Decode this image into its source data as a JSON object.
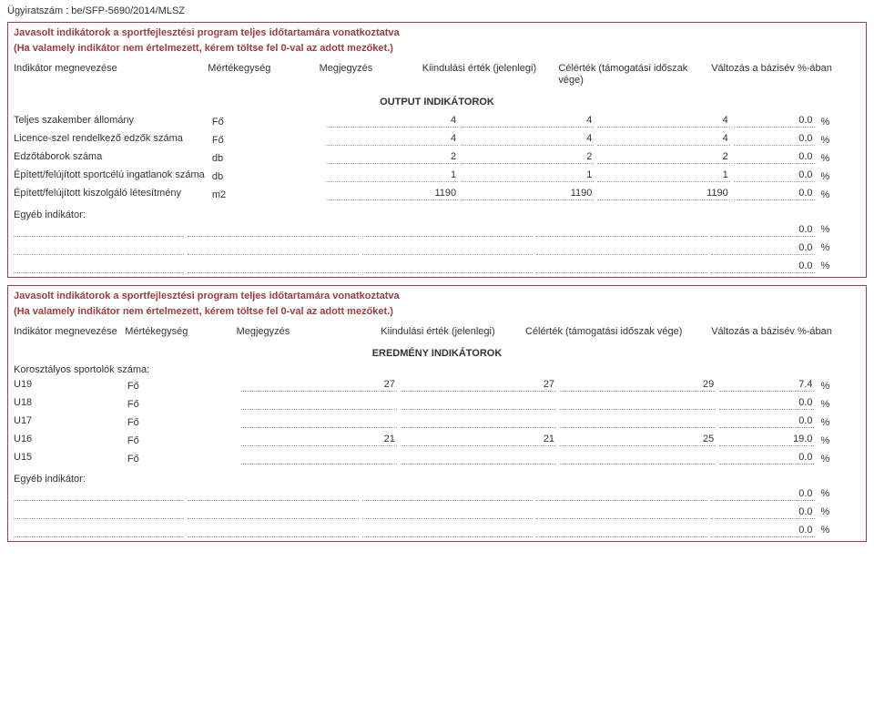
{
  "doc_number": "Ügyiratszám : be/SFP-5690/2014/MLSZ",
  "section1": {
    "title": "Javasolt indikátorok a sportfejlesztési program teljes időtartamára vonatkoztatva",
    "sub": "(Ha valamely indikátor nem értelmezett, kérem töltse fel 0-val az adott mezőket.)",
    "headers": {
      "c1": "Indikátor megnevezése",
      "c2": "Mértékegység",
      "c3": "Megjegyzés",
      "c4": "Kiindulási érték (jelenlegi)",
      "c5": "Célérték (támogatási időszak vége)",
      "c6": "Változás a bázisév %-ában"
    },
    "divider": "OUTPUT INDIKÁTOROK",
    "rows": [
      {
        "label": "Teljes szakember állomány",
        "unit": "Fő",
        "v1": "4",
        "v2": "4",
        "v3": "4",
        "pct": "0.0",
        "pctSuffix": "%"
      },
      {
        "label": "Licence-szel rendelkező edzők száma",
        "unit": "Fő",
        "v1": "4",
        "v2": "4",
        "v3": "4",
        "pct": "0.0",
        "pctSuffix": "%"
      },
      {
        "label": "Edzőtáborok száma",
        "unit": "db",
        "v1": "2",
        "v2": "2",
        "v3": "2",
        "pct": "0.0",
        "pctSuffix": "%"
      },
      {
        "label": "Épített/felújított sportcélú ingatlanok száma",
        "unit": "db",
        "v1": "1",
        "v2": "1",
        "v3": "1",
        "pct": "0.0",
        "pctSuffix": "%"
      },
      {
        "label": "Épített/felújított kiszolgáló létesítmény",
        "unit": "m2",
        "v1": "1190",
        "v2": "1190",
        "v3": "1190",
        "pct": "0.0",
        "pctSuffix": "%"
      }
    ],
    "egyeb": "Egyéb indikátor:",
    "emptyPct": [
      "0.0",
      "0.0",
      "0.0"
    ],
    "pctSuffix": "%"
  },
  "section2": {
    "title": "Javasolt indikátorok a sportfejlesztési program teljes időtartamára vonatkoztatva",
    "sub": "(Ha valamely indikátor nem értelmezett, kérem töltse fel 0-val az adott mezőket.)",
    "headers": {
      "c1": "Indikátor megnevezése",
      "c2": "Mértékegység",
      "c3": "Megjegyzés",
      "c4": "Kiindulási érték (jelenlegi)",
      "c5": "Célérték (támogatási időszak vége)",
      "c6": "Változás a bázisév %-ában"
    },
    "divider": "EREDMÉNY INDIKÁTOROK",
    "subhead": "Korosztályos sportolók száma:",
    "rows": [
      {
        "label": "U19",
        "unit": "Fő",
        "v1": "27",
        "v2": "27",
        "v3": "29",
        "pct": "7.4",
        "pctSuffix": "%"
      },
      {
        "label": "U18",
        "unit": "Fő",
        "v1": "",
        "v2": "",
        "v3": "",
        "pct": "0.0",
        "pctSuffix": "%"
      },
      {
        "label": "U17",
        "unit": "Fő",
        "v1": "",
        "v2": "",
        "v3": "",
        "pct": "0.0",
        "pctSuffix": "%"
      },
      {
        "label": "U16",
        "unit": "Fő",
        "v1": "21",
        "v2": "21",
        "v3": "25",
        "pct": "19.0",
        "pctSuffix": "%"
      },
      {
        "label": "U15",
        "unit": "Fő",
        "v1": "",
        "v2": "",
        "v3": "",
        "pct": "0.0",
        "pctSuffix": "%"
      }
    ],
    "egyeb": "Egyéb indikátor:",
    "emptyPct": [
      "0.0",
      "0.0",
      "0.0"
    ],
    "pctSuffix": "%"
  }
}
